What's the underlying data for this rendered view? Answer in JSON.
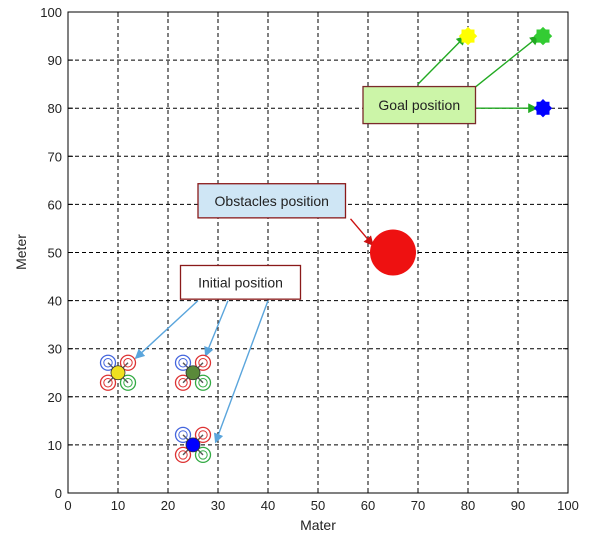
{
  "chart_data": {
    "type": "scatter",
    "xlabel": "Mater",
    "ylabel": "Meter",
    "xlim": [
      0,
      100
    ],
    "ylim": [
      0,
      100
    ],
    "xticks": [
      0,
      10,
      20,
      30,
      40,
      50,
      60,
      70,
      80,
      90,
      100
    ],
    "yticks": [
      0,
      10,
      20,
      30,
      40,
      50,
      60,
      70,
      80,
      90,
      100
    ],
    "grid": true,
    "grid_style": "dashed",
    "drones": [
      {
        "x": 10,
        "y": 25,
        "center_color": "#f0e020"
      },
      {
        "x": 25,
        "y": 25,
        "center_color": "#5a8a3a"
      },
      {
        "x": 25,
        "y": 10,
        "center_color": "#0000ff"
      }
    ],
    "goals": [
      {
        "x": 80,
        "y": 95,
        "color": "#ffff00"
      },
      {
        "x": 95,
        "y": 95,
        "color": "#33cc33"
      },
      {
        "x": 95,
        "y": 80,
        "color": "#0000ff"
      }
    ],
    "obstacle": {
      "x": 65,
      "y": 50,
      "radius": 4.6,
      "color": "#ee1111"
    },
    "annotations": [
      {
        "text": "Goal position",
        "fill": "#ccf5a8",
        "stroke": "#7a2a2a",
        "box": {
          "x1": 59,
          "y1": 84.5,
          "x2": 81.5,
          "y2": 76.8
        },
        "arrow_color": "#22aa22",
        "arrows": [
          {
            "from": [
              70,
              85
            ],
            "to": [
              79.5,
              95
            ]
          },
          {
            "from": [
              81,
              84
            ],
            "to": [
              94.2,
              95
            ]
          },
          {
            "from": [
              81.5,
              80
            ],
            "to": [
              93.8,
              80
            ]
          }
        ]
      },
      {
        "text": "Obstacles position",
        "fill": "#cfe6f5",
        "stroke": "#8a1a1a",
        "box": {
          "x1": 26,
          "y1": 64.3,
          "x2": 55.5,
          "y2": 57.2
        },
        "arrow_color": "#cc1111",
        "arrows": [
          {
            "from": [
              56.5,
              57
            ],
            "to": [
              61,
              51.5
            ]
          }
        ]
      },
      {
        "text": "Initial position",
        "fill": "#ffffff",
        "stroke": "#8a1a1a",
        "box": {
          "x1": 22.5,
          "y1": 47.3,
          "x2": 46.5,
          "y2": 40.3
        },
        "arrow_color": "#5aa5dc",
        "arrows": [
          {
            "from": [
              26,
              40
            ],
            "to": [
              13.5,
              28
            ]
          },
          {
            "from": [
              32,
              40
            ],
            "to": [
              27.5,
              28.5
            ]
          },
          {
            "from": [
              40,
              40
            ],
            "to": [
              29.5,
              10.5
            ]
          }
        ]
      }
    ]
  }
}
